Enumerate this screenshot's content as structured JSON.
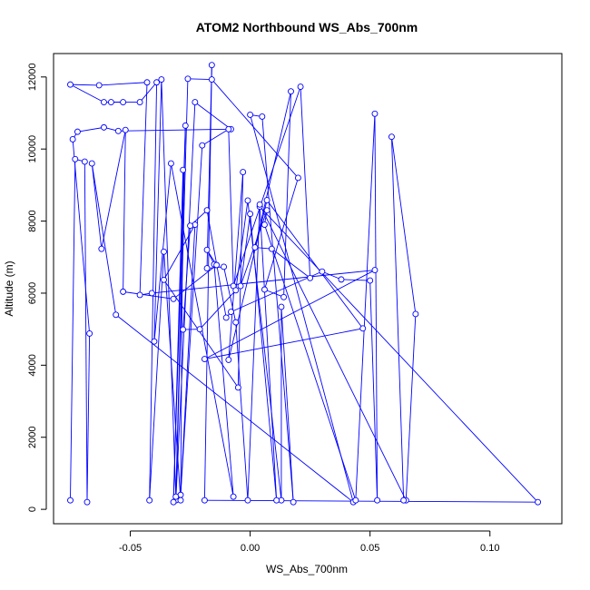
{
  "chart_data": {
    "type": "line",
    "title": "ATOM2 Northbound WS_Abs_700nm",
    "xlabel": "WS_Abs_700nm",
    "ylabel": "Altitude (m)",
    "xlim": [
      -0.082,
      0.13
    ],
    "ylim": [
      -400,
      12650
    ],
    "xticks": [
      -0.05,
      0.0,
      0.05,
      0.1
    ],
    "xtick_labels": [
      "-0.05",
      "0.00",
      "0.05",
      "0.10"
    ],
    "yticks": [
      0,
      2000,
      4000,
      6000,
      8000,
      10000,
      12000
    ],
    "ytick_labels": [
      "0",
      "2000",
      "4000",
      "6000",
      "8000",
      "10000",
      "12000"
    ],
    "series_color": "#0000ff",
    "marker": "open-circle",
    "grid": false,
    "series": [
      {
        "points": [
          [
            -0.075,
            250
          ],
          [
            -0.073,
            9720
          ],
          [
            -0.069,
            9650
          ],
          [
            -0.068,
            200
          ],
          [
            -0.067,
            4880
          ],
          [
            -0.074,
            10270
          ],
          [
            -0.072,
            10480
          ],
          [
            -0.061,
            10600
          ],
          [
            -0.055,
            10500
          ],
          [
            -0.008,
            10550
          ],
          [
            -0.023,
            11300
          ],
          [
            -0.031,
            250
          ],
          [
            -0.026,
            11950
          ],
          [
            -0.016,
            11930
          ],
          [
            0.02,
            9200
          ],
          [
            0.006,
            6100
          ],
          [
            0.014,
            5890
          ],
          [
            0.017,
            11600
          ],
          [
            0.002,
            7270
          ],
          [
            0.009,
            7230
          ],
          [
            0.025,
            6420
          ],
          [
            0.021,
            11730
          ],
          [
            -0.007,
            6200
          ],
          [
            -0.009,
            10550
          ],
          [
            -0.02,
            10100
          ],
          [
            -0.029,
            400
          ],
          [
            -0.023,
            7900
          ],
          [
            -0.036,
            6370
          ],
          [
            -0.005,
            3380
          ],
          [
            -0.003,
            9360
          ],
          [
            -0.009,
            4150
          ],
          [
            0.007,
            8580
          ],
          [
            0.047,
            5020
          ],
          [
            -0.019,
            4170
          ],
          [
            0.052,
            6640
          ],
          [
            -0.041,
            6000
          ],
          [
            -0.046,
            5950
          ],
          [
            -0.043,
            11850
          ],
          [
            -0.063,
            11770
          ],
          [
            -0.075,
            11790
          ],
          [
            -0.061,
            11300
          ],
          [
            -0.053,
            11300
          ],
          [
            -0.058,
            11300
          ],
          [
            -0.046,
            11300
          ],
          [
            -0.039,
            11850
          ],
          [
            -0.042,
            250
          ],
          [
            -0.036,
            7150
          ],
          [
            -0.029,
            250
          ],
          [
            -0.028,
            9420
          ],
          [
            -0.032,
            200
          ],
          [
            -0.027,
            10650
          ],
          [
            -0.031,
            350
          ],
          [
            -0.037,
            11930
          ],
          [
            -0.04,
            4660
          ],
          [
            -0.033,
            9600
          ],
          [
            -0.007,
            350
          ],
          [
            -0.015,
            6800
          ],
          [
            -0.018,
            7200
          ],
          [
            -0.014,
            6780
          ],
          [
            -0.032,
            5840
          ],
          [
            -0.053,
            6040
          ],
          [
            -0.052,
            10530
          ],
          [
            -0.062,
            7230
          ],
          [
            -0.066,
            9600
          ],
          [
            -0.056,
            5400
          ],
          [
            0.043,
            200
          ],
          [
            0.0,
            10950
          ],
          [
            0.005,
            10900
          ],
          [
            0.018,
            200
          ],
          [
            0.013,
            5620
          ],
          [
            0.013,
            250
          ],
          [
            -0.001,
            8570
          ],
          [
            -0.006,
            6080
          ],
          [
            -0.021,
            5000
          ],
          [
            -0.028,
            4990
          ],
          [
            -0.025,
            7870
          ],
          [
            -0.018,
            8300
          ],
          [
            -0.01,
            5320
          ],
          [
            -0.008,
            5480
          ],
          [
            0.03,
            6600
          ],
          [
            0.038,
            6380
          ],
          [
            0.05,
            6350
          ],
          [
            0.053,
            250
          ],
          [
            0.052,
            10980
          ],
          [
            0.044,
            250
          ],
          [
            0.006,
            7900
          ],
          [
            0.007,
            8300
          ],
          [
            -0.004,
            6200
          ],
          [
            0.0,
            8200
          ],
          [
            0.011,
            250
          ],
          [
            0.004,
            8400
          ],
          [
            0.12,
            200
          ],
          [
            -0.019,
            250
          ],
          [
            -0.016,
            12330
          ],
          [
            -0.018,
            6690
          ],
          [
            -0.011,
            6730
          ],
          [
            -0.006,
            5190
          ],
          [
            -0.001,
            250
          ],
          [
            0.004,
            8460
          ],
          [
            0.065,
            250
          ],
          [
            0.069,
            5420
          ],
          [
            0.059,
            10340
          ],
          [
            0.064,
            250
          ]
        ]
      }
    ]
  }
}
